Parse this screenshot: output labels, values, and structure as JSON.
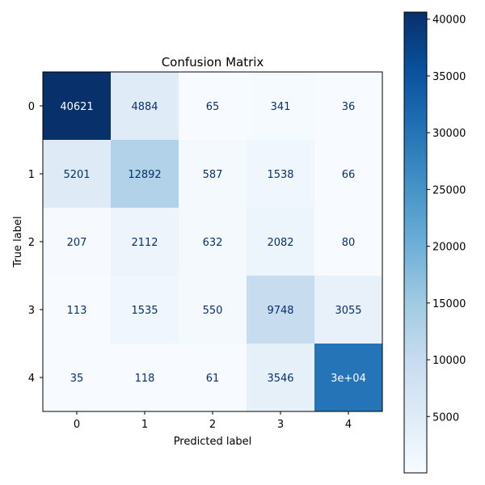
{
  "chart_data": {
    "type": "heatmap",
    "title": "Confusion Matrix",
    "xlabel": "Predicted label",
    "ylabel": "True label",
    "x_categories": [
      "0",
      "1",
      "2",
      "3",
      "4"
    ],
    "y_categories": [
      "0",
      "1",
      "2",
      "3",
      "4"
    ],
    "values": [
      [
        40621,
        4884,
        65,
        341,
        36
      ],
      [
        5201,
        12892,
        587,
        1538,
        66
      ],
      [
        207,
        2112,
        632,
        2082,
        80
      ],
      [
        113,
        1535,
        550,
        9748,
        3055
      ],
      [
        35,
        118,
        61,
        3546,
        30000
      ]
    ],
    "cell_labels": [
      [
        "40621",
        "4884",
        "65",
        "341",
        "36"
      ],
      [
        "5201",
        "12892",
        "587",
        "1538",
        "66"
      ],
      [
        "207",
        "2112",
        "632",
        "2082",
        "80"
      ],
      [
        "113",
        "1535",
        "550",
        "9748",
        "3055"
      ],
      [
        "35",
        "118",
        "61",
        "3546",
        "3e+04"
      ]
    ],
    "colormap": "Blues",
    "colorbar": {
      "range": [
        35,
        40621
      ],
      "ticks": [
        5000,
        10000,
        15000,
        20000,
        25000,
        30000,
        35000,
        40000
      ],
      "tick_labels": [
        "5000",
        "10000",
        "15000",
        "20000",
        "25000",
        "30000",
        "35000",
        "40000"
      ]
    },
    "grid": false,
    "colors": {
      "label_dark": "#08306b",
      "label_light": "#ffffff",
      "axis": "#000000"
    }
  }
}
